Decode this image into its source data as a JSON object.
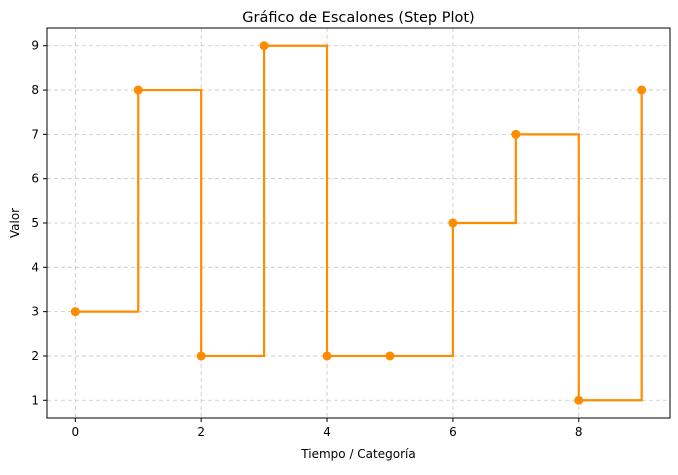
{
  "chart_data": {
    "type": "line",
    "step": "post",
    "title": "Gráfico de Escalones (Step Plot)",
    "xlabel": "Tiempo / Categoría",
    "ylabel": "Valor",
    "x": [
      0,
      1,
      2,
      3,
      4,
      5,
      6,
      7,
      8,
      9
    ],
    "series": [
      {
        "values": [
          3,
          8,
          2,
          9,
          2,
          2,
          5,
          7,
          1,
          8
        ]
      }
    ],
    "xlim": [
      -0.45,
      9.45
    ],
    "ylim": [
      0.6,
      9.4
    ],
    "xticks": [
      0,
      2,
      4,
      6,
      8
    ],
    "yticks": [
      1,
      2,
      3,
      4,
      5,
      6,
      7,
      8,
      9
    ],
    "grid": true,
    "line_color": "#ff8c00",
    "grid_color": "#b0b0b0"
  }
}
